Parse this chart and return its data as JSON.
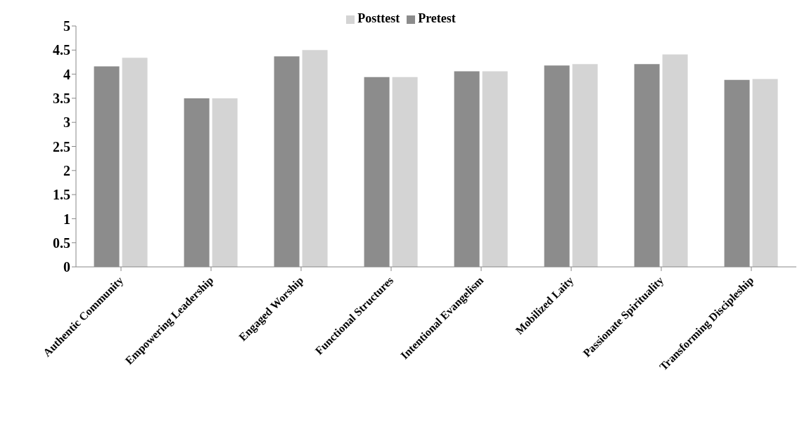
{
  "chart_data": {
    "type": "bar",
    "categories": [
      "Authentic Community",
      "Empowering Leadership",
      "Engaged Worship",
      "Functional Structures",
      "Intentional Evangelism",
      "Mobilized Laity",
      "Passionate Spirituality",
      "Transforming Discipleship"
    ],
    "series": [
      {
        "name": "Pretest",
        "color": "#8c8c8c",
        "values": [
          4.16,
          3.5,
          4.37,
          3.94,
          4.06,
          4.18,
          4.21,
          3.88
        ]
      },
      {
        "name": "Posttest",
        "color": "#d4d4d4",
        "values": [
          4.34,
          3.5,
          4.5,
          3.94,
          4.06,
          4.21,
          4.41,
          3.9
        ]
      }
    ],
    "ylim": [
      0,
      5
    ],
    "yticks": [
      0,
      0.5,
      1,
      1.5,
      2,
      2.5,
      3,
      3.5,
      4,
      4.5,
      5
    ],
    "grid": false,
    "legend": "top"
  }
}
